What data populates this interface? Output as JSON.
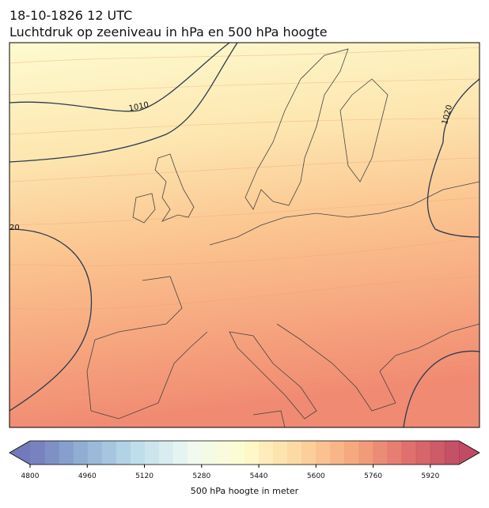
{
  "header": {
    "date": "18-10-1826 12 UTC",
    "title": "Luchtdruk op zeeniveau in hPa en 500 hPa hoogte"
  },
  "map": {
    "contour_labels": [
      "1010",
      "1020",
      "20"
    ]
  },
  "colorbar": {
    "label": "500 hPa hoogte in meter",
    "range": [
      4800,
      6000
    ],
    "step": 40,
    "ticks": [
      4800,
      4960,
      5120,
      5280,
      5440,
      5600,
      5760,
      5920
    ],
    "colors": [
      "#5b63b0",
      "#7ea3cc",
      "#b3d8e8",
      "#eef8f0",
      "#fefcc4",
      "#fdd090",
      "#f59a68",
      "#dd5a55",
      "#b52c4a"
    ]
  }
}
